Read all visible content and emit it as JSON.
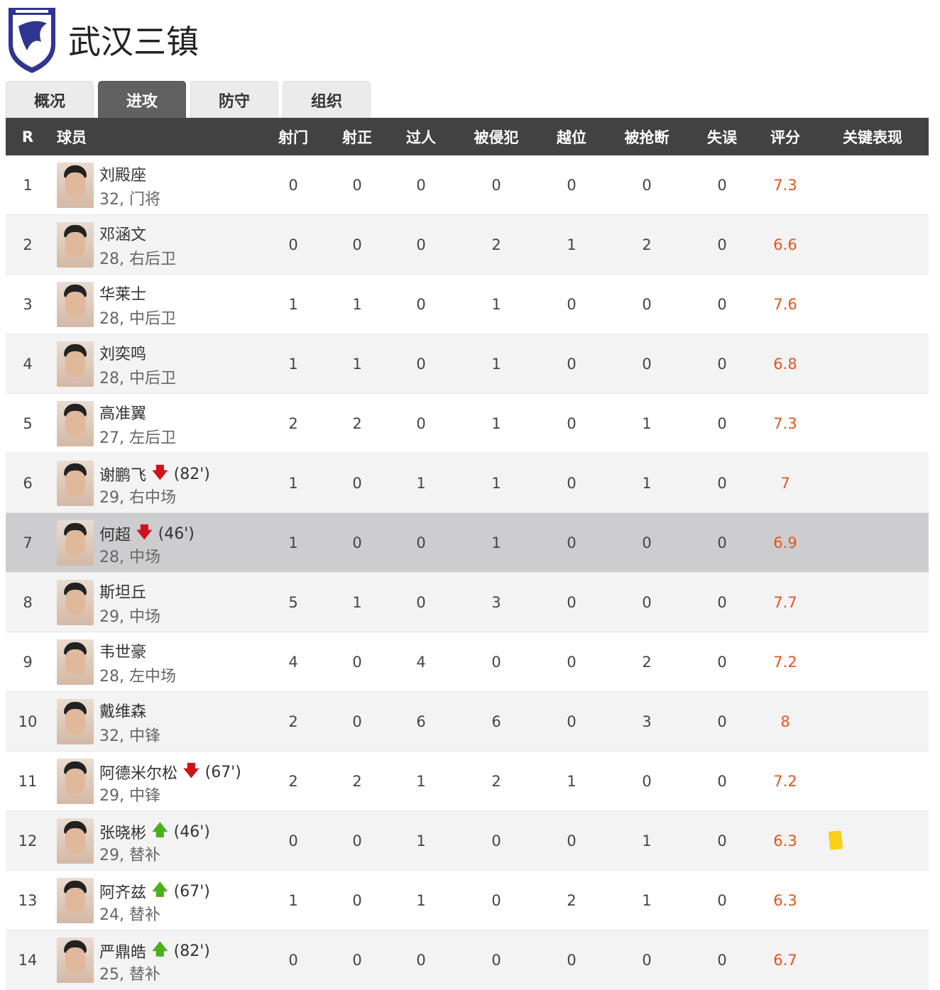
{
  "team": {
    "name": "武汉三镇",
    "logo": "wuhan-three-towns-crest"
  },
  "tabs": [
    {
      "label": "概况"
    },
    {
      "label": "进攻",
      "active": true
    },
    {
      "label": "防守"
    },
    {
      "label": "组织"
    }
  ],
  "columns": [
    "R",
    "球员",
    "射门",
    "射正",
    "过人",
    "被侵犯",
    "越位",
    "被抢断",
    "失误",
    "评分",
    "关键表现"
  ],
  "colors": {
    "header_bg": "#424242",
    "rating": "#e8541b",
    "sub_off": "#d0121b",
    "sub_on": "#4caf1a",
    "yellow_card": "#f7d117"
  },
  "rows": [
    {
      "r": "1",
      "name": "刘殿座",
      "info": "32, 门将",
      "stats": [
        "0",
        "0",
        "0",
        "0",
        "0",
        "0",
        "0"
      ],
      "rating": "7.3"
    },
    {
      "r": "2",
      "name": "邓涵文",
      "info": "28, 右后卫",
      "stats": [
        "0",
        "0",
        "0",
        "2",
        "1",
        "2",
        "0"
      ],
      "rating": "6.6"
    },
    {
      "r": "3",
      "name": "华莱士",
      "info": "28, 中后卫",
      "stats": [
        "1",
        "1",
        "0",
        "1",
        "0",
        "0",
        "0"
      ],
      "rating": "7.6"
    },
    {
      "r": "4",
      "name": "刘奕鸣",
      "info": "28, 中后卫",
      "stats": [
        "1",
        "1",
        "0",
        "1",
        "0",
        "0",
        "0"
      ],
      "rating": "6.8"
    },
    {
      "r": "5",
      "name": "高准翼",
      "info": "27, 左后卫",
      "stats": [
        "2",
        "2",
        "0",
        "1",
        "0",
        "1",
        "0"
      ],
      "rating": "7.3"
    },
    {
      "r": "6",
      "name": "谢鹏飞",
      "sub": "off",
      "sub_time": "(82')",
      "info": "29, 右中场",
      "stats": [
        "1",
        "0",
        "1",
        "1",
        "0",
        "1",
        "0"
      ],
      "rating": "7"
    },
    {
      "r": "7",
      "name": "何超",
      "sub": "off",
      "sub_time": "(46')",
      "info": "28, 中场",
      "stats": [
        "1",
        "0",
        "0",
        "1",
        "0",
        "0",
        "0"
      ],
      "rating": "6.9",
      "highlight": true
    },
    {
      "r": "8",
      "name": "斯坦丘",
      "info": "29, 中场",
      "stats": [
        "5",
        "1",
        "0",
        "3",
        "0",
        "0",
        "0"
      ],
      "rating": "7.7"
    },
    {
      "r": "9",
      "name": "韦世豪",
      "info": "28, 左中场",
      "stats": [
        "4",
        "0",
        "4",
        "0",
        "0",
        "2",
        "0"
      ],
      "rating": "7.2"
    },
    {
      "r": "10",
      "name": "戴维森",
      "info": "32, 中锋",
      "stats": [
        "2",
        "0",
        "6",
        "6",
        "0",
        "3",
        "0"
      ],
      "rating": "8"
    },
    {
      "r": "11",
      "name": "阿德米尔松",
      "sub": "off",
      "sub_time": "(67')",
      "info": "29, 中锋",
      "stats": [
        "2",
        "2",
        "1",
        "2",
        "1",
        "0",
        "0"
      ],
      "rating": "7.2"
    },
    {
      "r": "12",
      "name": "张晓彬",
      "sub": "on",
      "sub_time": "(46')",
      "info": "29, 替补",
      "stats": [
        "0",
        "0",
        "1",
        "0",
        "0",
        "1",
        "0"
      ],
      "rating": "6.3",
      "key": "yellow-card"
    },
    {
      "r": "13",
      "name": "阿齐兹",
      "sub": "on",
      "sub_time": "(67')",
      "info": "24, 替补",
      "stats": [
        "1",
        "0",
        "1",
        "0",
        "2",
        "1",
        "0"
      ],
      "rating": "6.3"
    },
    {
      "r": "14",
      "name": "严鼎皓",
      "sub": "on",
      "sub_time": "(82')",
      "info": "25, 替补",
      "stats": [
        "0",
        "0",
        "0",
        "0",
        "0",
        "0",
        "0"
      ],
      "rating": "6.7"
    }
  ]
}
